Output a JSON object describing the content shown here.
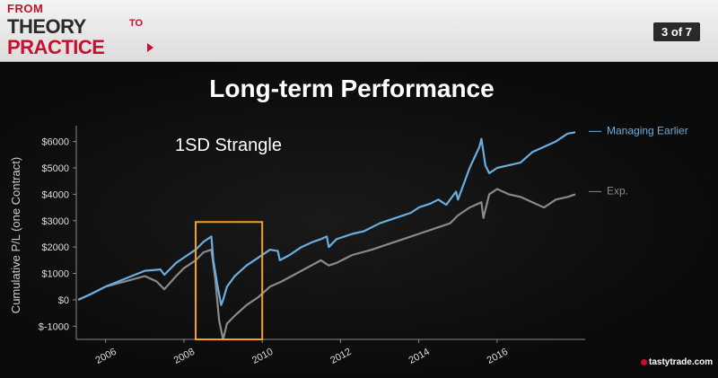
{
  "header": {
    "logo": {
      "from": "FROM",
      "theory": "THEORY",
      "to": "TO",
      "practice": "PRACTICE"
    },
    "page_indicator": "3 of 7"
  },
  "branding": "tastytrade",
  "branding_suffix": ".com",
  "colors": {
    "managing": "#6aaee0",
    "expiration": "#8a8a8a",
    "highlight": "#f7a21b",
    "text": "#ffffff"
  },
  "chart_data": {
    "type": "line",
    "title": "Long-term Performance",
    "subtitle": "1SD Strangle",
    "ylabel": "Cumulative P/L (one Contract)",
    "xlabel": "",
    "xlim": [
      2005.25,
      2018.25
    ],
    "ylim": [
      -1500,
      6600
    ],
    "xticks": [
      2006,
      2008,
      2010,
      2012,
      2014,
      2016
    ],
    "yticks": [
      -1000,
      0,
      1000,
      2000,
      3000,
      4000,
      5000,
      6000
    ],
    "ytick_labels": [
      "$-1000",
      "$0",
      "$1000",
      "$2000",
      "$3000",
      "$4000",
      "$5000",
      "$6000"
    ],
    "grid": false,
    "annotation_box": {
      "x": [
        2008.3,
        2010.0
      ],
      "y": [
        -1500,
        2950
      ]
    },
    "series": [
      {
        "name": "Managing Earlier",
        "x": [
          2005.3,
          2005.6,
          2006.0,
          2006.5,
          2007.0,
          2007.4,
          2007.5,
          2007.8,
          2008.0,
          2008.3,
          2008.5,
          2008.7,
          2008.75,
          2008.85,
          2008.95,
          2009.0,
          2009.1,
          2009.3,
          2009.6,
          2009.9,
          2010.2,
          2010.4,
          2010.45,
          2010.7,
          2011.0,
          2011.3,
          2011.5,
          2011.65,
          2011.7,
          2011.9,
          2012.3,
          2012.6,
          2013.0,
          2013.4,
          2013.8,
          2014.0,
          2014.3,
          2014.5,
          2014.7,
          2014.95,
          2015.0,
          2015.3,
          2015.55,
          2015.6,
          2015.7,
          2015.8,
          2016.0,
          2016.3,
          2016.6,
          2016.9,
          2017.2,
          2017.5,
          2017.8,
          2018.0
        ],
        "y": [
          0,
          200,
          500,
          800,
          1100,
          1150,
          950,
          1400,
          1600,
          1900,
          2200,
          2400,
          1500,
          600,
          -200,
          0,
          500,
          900,
          1300,
          1600,
          1900,
          1850,
          1500,
          1700,
          2000,
          2200,
          2300,
          2400,
          2000,
          2300,
          2500,
          2600,
          2900,
          3100,
          3300,
          3500,
          3650,
          3800,
          3600,
          4100,
          3800,
          5000,
          5800,
          6100,
          5100,
          4800,
          5000,
          5100,
          5200,
          5600,
          5800,
          6000,
          6300,
          6350
        ]
      },
      {
        "name": "Exp.",
        "x": [
          2005.3,
          2005.6,
          2006.0,
          2006.5,
          2007.0,
          2007.3,
          2007.5,
          2007.8,
          2008.0,
          2008.3,
          2008.5,
          2008.7,
          2008.8,
          2008.9,
          2009.0,
          2009.1,
          2009.3,
          2009.6,
          2009.9,
          2010.2,
          2010.5,
          2011.0,
          2011.5,
          2011.7,
          2011.9,
          2012.3,
          2012.8,
          2013.2,
          2013.6,
          2014.0,
          2014.4,
          2014.8,
          2015.0,
          2015.3,
          2015.6,
          2015.65,
          2015.8,
          2016.0,
          2016.3,
          2016.6,
          2016.9,
          2017.2,
          2017.5,
          2017.8,
          2018.0
        ],
        "y": [
          0,
          200,
          500,
          700,
          900,
          700,
          400,
          900,
          1200,
          1500,
          1800,
          1900,
          800,
          -800,
          -1500,
          -900,
          -600,
          -200,
          100,
          500,
          700,
          1100,
          1500,
          1300,
          1400,
          1700,
          1900,
          2100,
          2300,
          2500,
          2700,
          2900,
          3200,
          3500,
          3700,
          3100,
          4000,
          4200,
          4000,
          3900,
          3700,
          3500,
          3800,
          3900,
          4000
        ]
      }
    ]
  }
}
